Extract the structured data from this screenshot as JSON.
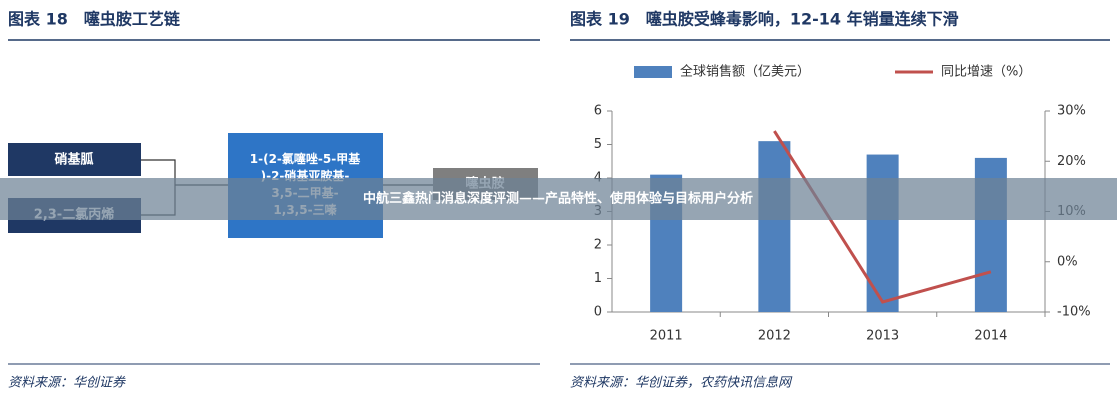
{
  "left": {
    "title": "图表 18　噻虫胺工艺链",
    "nodes": [
      {
        "lines": [
          "硝基胍"
        ]
      },
      {
        "lines": [
          "2,3-二氯丙烯"
        ]
      },
      {
        "lines": [
          "1-(2-氯噻唑-5-甲基",
          ")-2-硝基亚胺基-",
          "3,5-二甲基-",
          "1,3,5-三嗪"
        ]
      },
      {
        "lines": [
          "噻虫胺"
        ]
      }
    ],
    "source": "资料来源：华创证券"
  },
  "chart_data": {
    "type": "bar",
    "title": "图表 19　噻虫胺受蜂毒影响，12-14 年销量连续下滑",
    "categories": [
      "2011",
      "2012",
      "2013",
      "2014"
    ],
    "series": [
      {
        "name": "全球销售额（亿美元）",
        "type": "bar",
        "color": "#4f81bd",
        "values": [
          4.1,
          5.1,
          4.7,
          4.6
        ]
      },
      {
        "name": "同比增速（%）",
        "type": "line",
        "axis": "y2",
        "color": "#c0504d",
        "values": [
          null,
          26,
          -8,
          -2
        ]
      }
    ],
    "ylim": [
      0,
      6
    ],
    "yticks": [
      0,
      1,
      2,
      3,
      4,
      5,
      6
    ],
    "y2lim": [
      -10,
      30
    ],
    "y2ticks": [
      {
        "value": -10,
        "label": "-10%"
      },
      {
        "value": 0,
        "label": "0%"
      },
      {
        "value": 10,
        "label": "10%"
      },
      {
        "value": 20,
        "label": "20%"
      },
      {
        "value": 30,
        "label": "30%"
      }
    ],
    "legend": "top",
    "source": "资料来源：华创证券，农药快讯信息网"
  },
  "banner": "中航三鑫热门消息深度评测——产品特性、使用体验与目标用户分析"
}
